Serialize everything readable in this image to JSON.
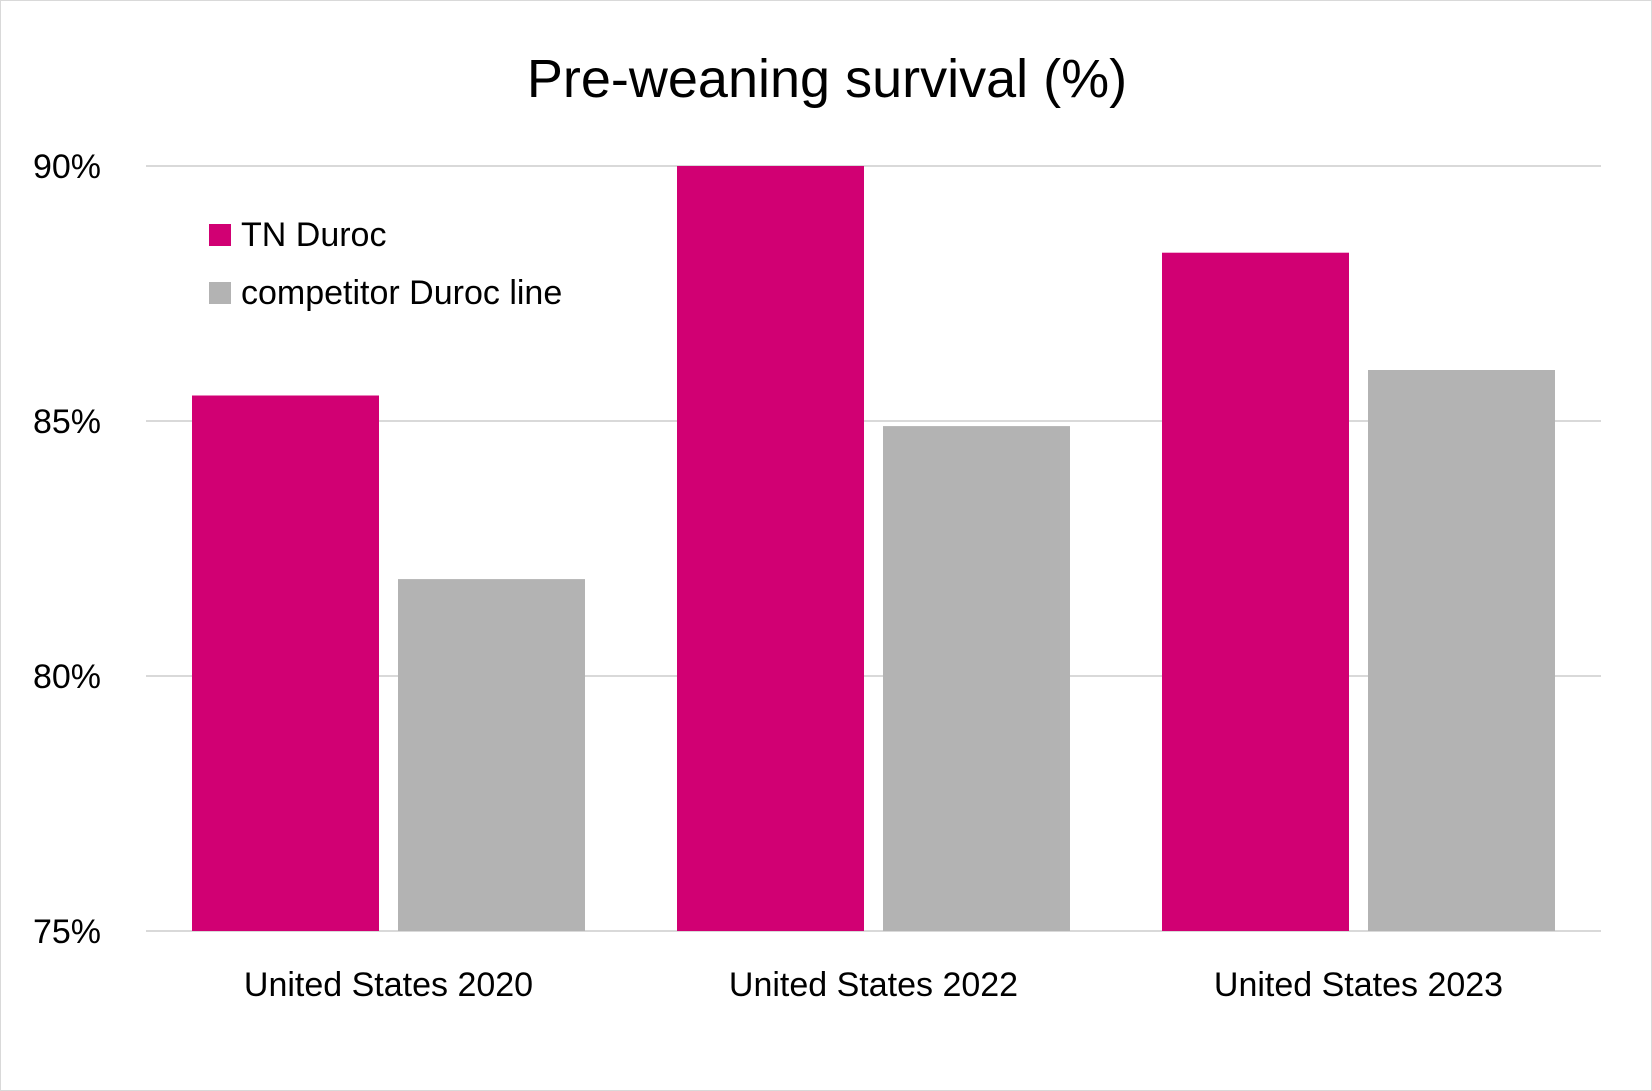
{
  "chart_data": {
    "type": "bar",
    "title": "Pre-weaning survival (%)",
    "xlabel": "",
    "ylabel": "",
    "categories": [
      "United States 2020",
      "United States 2022",
      "United States 2023"
    ],
    "series": [
      {
        "name": "TN Duroc",
        "color": "#d10073",
        "values": [
          85.5,
          90.0,
          88.3
        ]
      },
      {
        "name": "competitor Duroc line",
        "color": "#b3b3b3",
        "values": [
          81.9,
          84.9,
          86.0
        ]
      }
    ],
    "ylim": [
      75,
      90
    ],
    "yticks": [
      75,
      80,
      85,
      90
    ],
    "ytick_labels": [
      "75%",
      "80%",
      "85%",
      "90%"
    ],
    "grid": true,
    "legend_position": "top-left"
  }
}
